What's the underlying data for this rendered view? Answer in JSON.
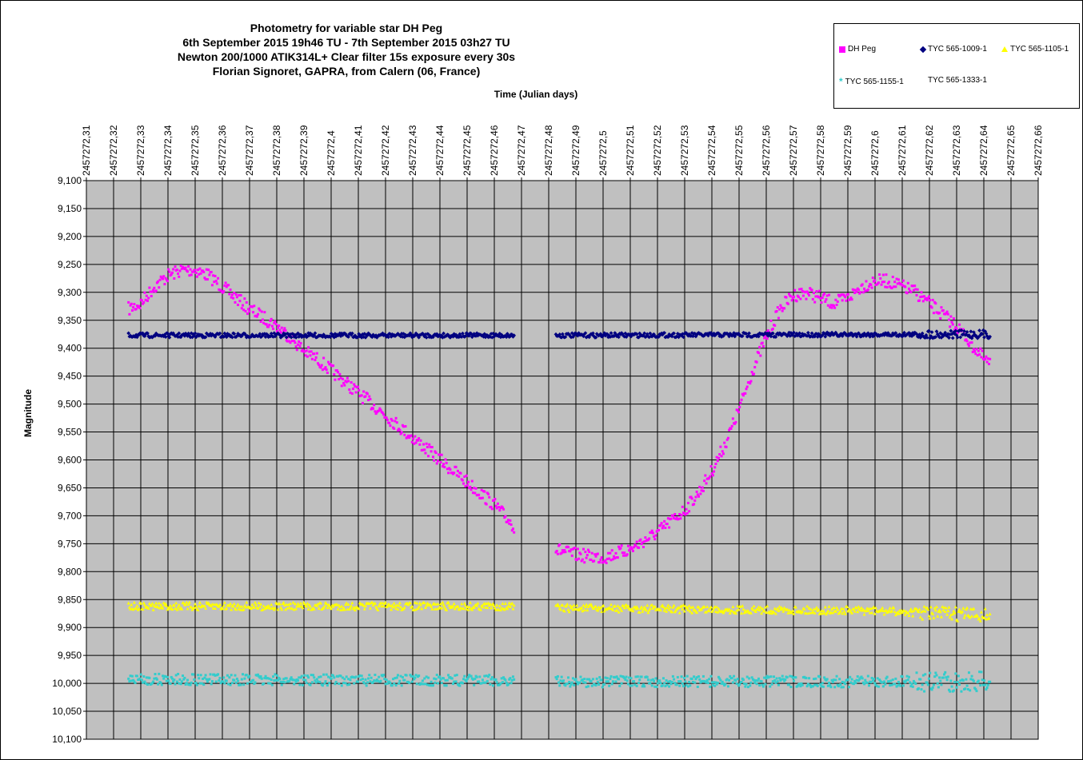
{
  "chart_data": {
    "type": "scatter",
    "title": [
      "Photometry for variable star DH Peg",
      "6th September 2015 19h46 TU - 7th September 2015 03h27 TU",
      "Newton 200/1000 ATIK314L+ Clear filter 15s exposure every 30s",
      "Florian Signoret, GAPRA, from Calern (06, France)"
    ],
    "xlabel": "Time (Julian days)",
    "ylabel": "Magnitude",
    "xlim": [
      2457272.31,
      2457272.66
    ],
    "ylim": [
      9.1,
      10.1
    ],
    "y_inverted": true,
    "grid": true,
    "legend_position": "top-right",
    "x_ticks": [
      "2457272,31",
      "2457272,32",
      "2457272,33",
      "2457272,34",
      "2457272,35",
      "2457272,36",
      "2457272,37",
      "2457272,38",
      "2457272,39",
      "2457272,4",
      "2457272,41",
      "2457272,42",
      "2457272,43",
      "2457272,44",
      "2457272,45",
      "2457272,46",
      "2457272,47",
      "2457272,48",
      "2457272,49",
      "2457272,5",
      "2457272,51",
      "2457272,52",
      "2457272,53",
      "2457272,54",
      "2457272,55",
      "2457272,56",
      "2457272,57",
      "2457272,58",
      "2457272,59",
      "2457272,6",
      "2457272,61",
      "2457272,62",
      "2457272,63",
      "2457272,64",
      "2457272,65",
      "2457272,66"
    ],
    "y_ticks": [
      "9,100",
      "9,150",
      "9,200",
      "9,250",
      "9,300",
      "9,350",
      "9,400",
      "9,450",
      "9,500",
      "9,550",
      "9,600",
      "9,650",
      "9,700",
      "9,750",
      "9,800",
      "9,850",
      "9,900",
      "9,950",
      "10,000",
      "10,050",
      "10,100"
    ],
    "gaps": [
      [
        0.4675,
        0.4825
      ]
    ],
    "series": [
      {
        "name": "DH Peg",
        "marker": "square",
        "color": "#FF00FF",
        "x": [
          0.3255,
          0.33,
          0.335,
          0.34,
          0.345,
          0.35,
          0.355,
          0.36,
          0.365,
          0.37,
          0.375,
          0.38,
          0.385,
          0.39,
          0.395,
          0.4,
          0.41,
          0.42,
          0.43,
          0.44,
          0.45,
          0.46,
          0.4675,
          0.4825,
          0.49,
          0.5,
          0.51,
          0.52,
          0.53,
          0.535,
          0.54,
          0.545,
          0.55,
          0.555,
          0.56,
          0.565,
          0.57,
          0.575,
          0.58,
          0.585,
          0.59,
          0.595,
          0.6,
          0.605,
          0.61,
          0.615,
          0.62,
          0.625,
          0.63,
          0.635,
          0.64,
          0.6425
        ],
        "y": [
          9.33,
          9.32,
          9.29,
          9.27,
          9.26,
          9.26,
          9.27,
          9.29,
          9.31,
          9.33,
          9.345,
          9.36,
          9.38,
          9.405,
          9.42,
          9.44,
          9.48,
          9.52,
          9.56,
          9.6,
          9.64,
          9.68,
          9.72,
          9.76,
          9.77,
          9.775,
          9.76,
          9.73,
          9.69,
          9.66,
          9.62,
          9.57,
          9.51,
          9.44,
          9.38,
          9.33,
          9.305,
          9.3,
          9.31,
          9.32,
          9.31,
          9.29,
          9.28,
          9.28,
          9.29,
          9.3,
          9.32,
          9.34,
          9.36,
          9.39,
          9.42,
          9.43
        ]
      },
      {
        "name": "TYC 565-1009-1",
        "marker": "diamond",
        "color": "#000080",
        "x": [
          0.3255,
          0.4675,
          0.4825,
          0.6425
        ],
        "y": [
          9.377,
          9.377,
          9.377,
          9.375
        ]
      },
      {
        "name": "TYC 565-1105-1",
        "marker": "triangle",
        "color": "#FFFF00",
        "x": [
          0.3255,
          0.4675,
          0.4825,
          0.6,
          0.6425
        ],
        "y": [
          9.862,
          9.862,
          9.865,
          9.87,
          9.878
        ]
      },
      {
        "name": "TYC 565-1155-1",
        "marker": "asterisk",
        "color": "#33CCCC",
        "x": [
          0.3255,
          0.4675,
          0.4825,
          0.6425
        ],
        "y": [
          9.993,
          9.995,
          9.997,
          9.997
        ]
      },
      {
        "name": "TYC 565-1333-1",
        "marker": "none",
        "color": "#FFFFFF",
        "x": [],
        "y": []
      }
    ]
  }
}
